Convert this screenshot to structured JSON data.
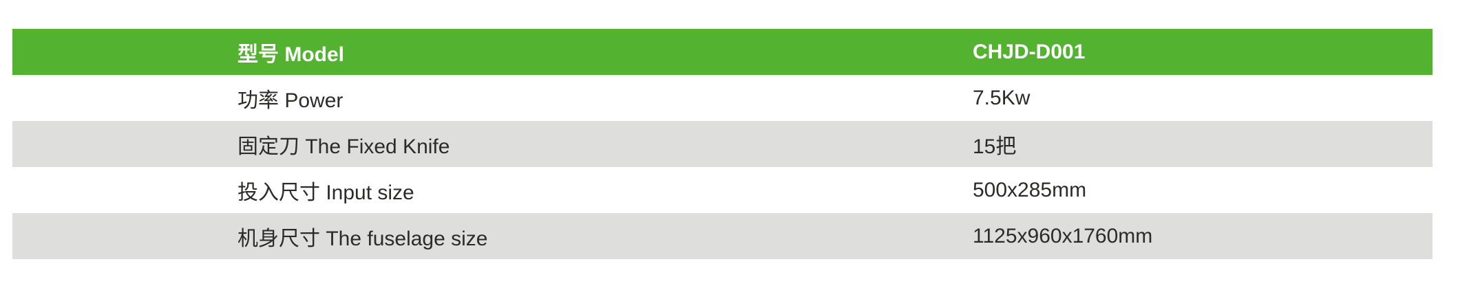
{
  "table": {
    "header": {
      "label": "型号 Model",
      "value": "CHJD-D001"
    },
    "rows": [
      {
        "label": "功率 Power",
        "value": "7.5Kw"
      },
      {
        "label": "固定刀 The Fixed Knife",
        "value": "15把"
      },
      {
        "label": "投入尺寸 Input size",
        "value": "500x285mm"
      },
      {
        "label": "机身尺寸 The fuselage size",
        "value": "1125x960x1760mm"
      }
    ],
    "colors": {
      "header_bg": "#54b231",
      "header_text": "#ffffff",
      "row_bg": "#ffffff",
      "row_alt_bg": "#dededd",
      "body_text": "#2b2b29"
    }
  }
}
